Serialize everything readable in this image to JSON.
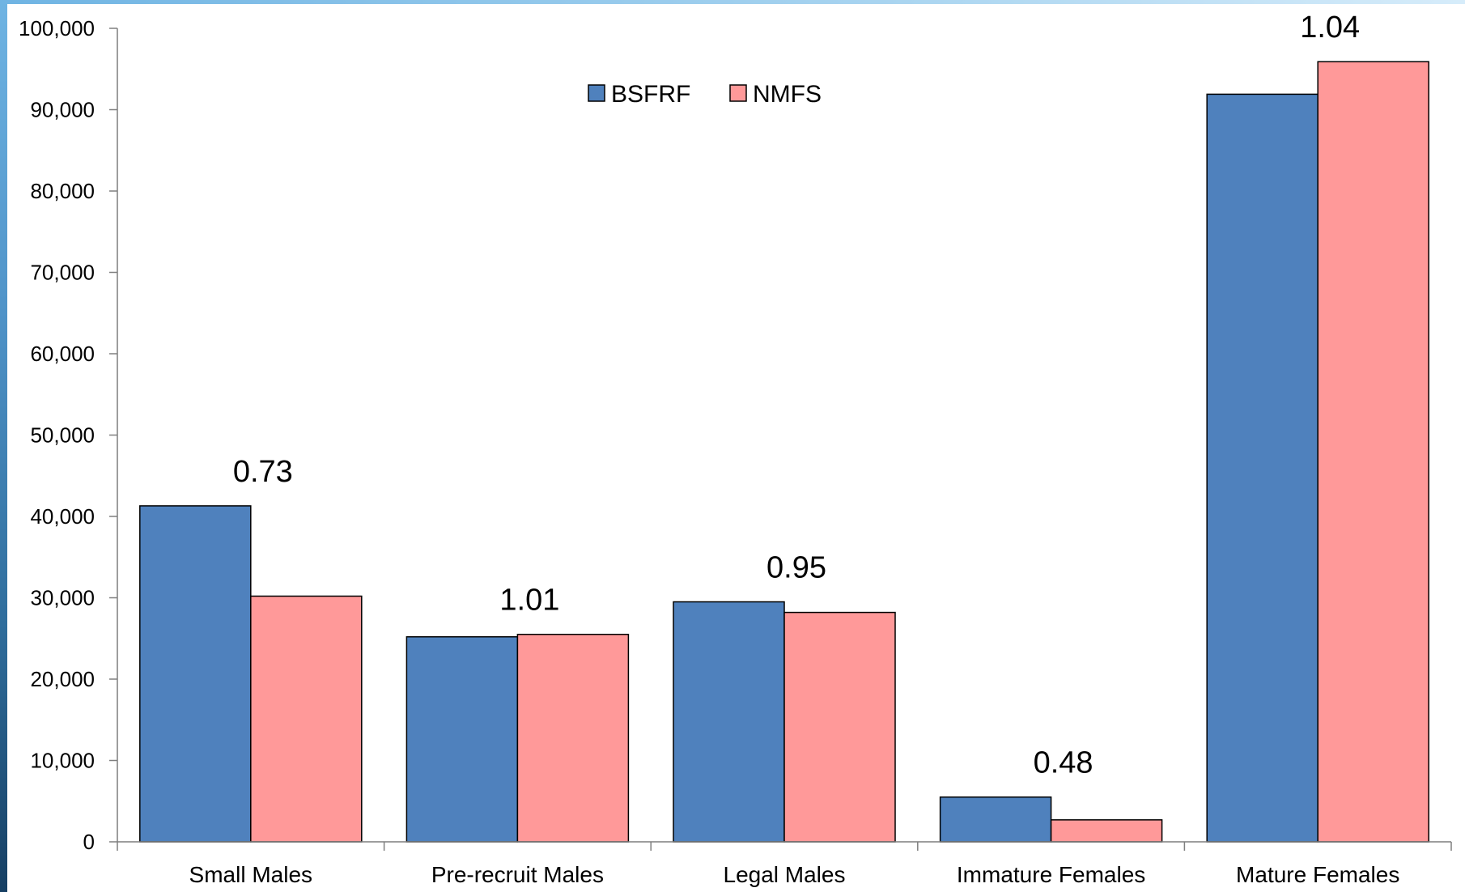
{
  "chart_data": {
    "type": "bar",
    "title": "",
    "xlabel": "",
    "ylabel": "",
    "ylim": [
      0,
      100000
    ],
    "yticks": [
      0,
      10000,
      20000,
      30000,
      40000,
      50000,
      60000,
      70000,
      80000,
      90000,
      100000
    ],
    "ytick_labels": [
      "0",
      "10,000",
      "20,000",
      "30,000",
      "40,000",
      "50,000",
      "60,000",
      "70,000",
      "80,000",
      "90,000",
      "100,000"
    ],
    "categories": [
      "Small Males",
      "Pre-recruit Males",
      "Legal Males",
      "Immature Females",
      "Mature Females"
    ],
    "series": [
      {
        "name": "BSFRF",
        "color": "#4f81bd",
        "values": [
          41300,
          25200,
          29500,
          5500,
          91900
        ]
      },
      {
        "name": "NMFS",
        "color": "#ff9999",
        "values": [
          30200,
          25500,
          28200,
          2700,
          95900
        ]
      }
    ],
    "annotations": [
      "0.73",
      "1.01",
      "0.95",
      "0.48",
      "1.04"
    ],
    "legend_position": "top-center",
    "grid": false
  }
}
